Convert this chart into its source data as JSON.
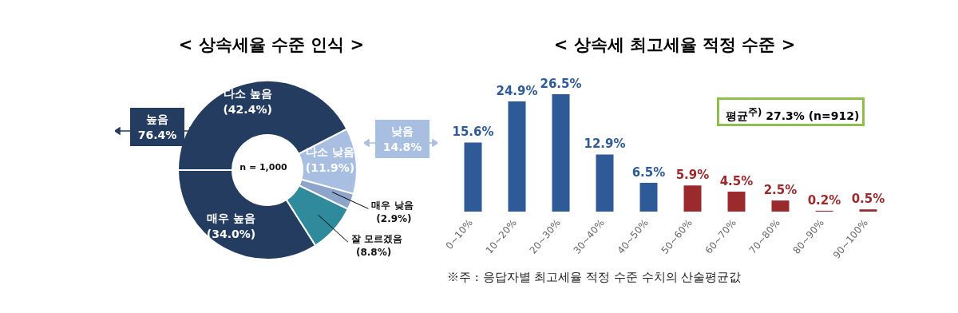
{
  "chart_data": [
    {
      "type": "donut",
      "title": "< 상속세율 수준 인식 >",
      "categories": [
        "다소 높음",
        "다소 낮음",
        "매우 낮음",
        "잘 모르겠음",
        "매우 높음"
      ],
      "values": [
        42.4,
        11.9,
        2.9,
        8.8,
        34.0
      ],
      "value_labels": [
        "(42.4%)",
        "(11.9%)",
        "(2.9%)",
        "(8.8%)",
        "(34.0%)"
      ],
      "colors": [
        "#243c60",
        "#a8bfe2",
        "#8ea5cb",
        "#2f8b9b",
        "#243c60"
      ],
      "annotations": [
        "n = 1,000",
        "높음 76.4%",
        "낮음 14.8%"
      ]
    },
    {
      "type": "bar",
      "title": "< 상속세 최고세율 적정 수준 >",
      "categories": [
        "0~10%",
        "10~20%",
        "20~30%",
        "30~40%",
        "40~50%",
        "50~60%",
        "60~70%",
        "70~80%",
        "80~90%",
        "90~100%"
      ],
      "values": [
        15.6,
        24.9,
        26.5,
        12.9,
        6.5,
        5.9,
        4.5,
        2.5,
        0.2,
        0.5
      ],
      "colors": [
        "#2e5a97",
        "#2e5a97",
        "#2e5a97",
        "#2e5a97",
        "#2e5a97",
        "#9a2a2c",
        "#9a2a2c",
        "#9a2a2c",
        "#9a2a2c",
        "#9a2a2c"
      ],
      "value_labels": [
        "15.6%",
        "24.9%",
        "26.5%",
        "12.9%",
        "6.5%",
        "5.9%",
        "4.5%",
        "2.5%",
        "0.2%",
        "0.5%"
      ],
      "annotations": [
        "평균$^{주)}$ 27.3% (n=912)",
        "※주 : 응답자별 최고세율 적정 수준 수치의 산술평균값"
      ]
    }
  ]
}
